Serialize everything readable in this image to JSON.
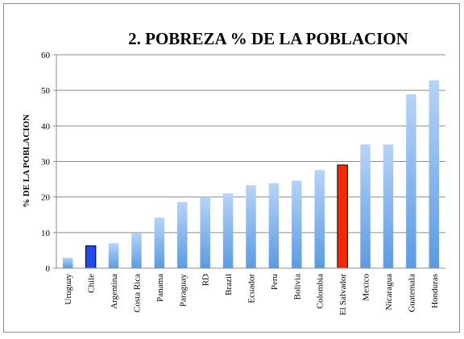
{
  "chart_data": {
    "type": "bar",
    "title": "2. POBREZA % DE LA POBLACION",
    "xlabel": "",
    "ylabel": "% DE LA POBLACION",
    "ylim": [
      0,
      60
    ],
    "yticks": [
      0,
      10,
      20,
      30,
      40,
      50,
      60
    ],
    "grid": true,
    "legend": "none",
    "categories": [
      "Uruguay",
      "Chile",
      "Argentina",
      "Costa Rica",
      "Panama",
      "Paraguay",
      "RD",
      "Brazil",
      "Ecuador",
      "Peru",
      "Bolivia",
      "Colombia",
      "El Salvador",
      "Mexico",
      "Nicaragua",
      "Guatemala",
      "Honduras"
    ],
    "values": [
      2.9,
      6.3,
      7.0,
      9.9,
      14.2,
      18.6,
      20.0,
      21.0,
      23.3,
      23.9,
      24.6,
      27.6,
      29.0,
      34.8,
      34.8,
      48.9,
      52.8
    ],
    "colors": {
      "default_top": "#b7d3f7",
      "default_bottom": "#5b9be2",
      "highlight_chile": "#1f49f2",
      "highlight_el_salvador": "#f22a06",
      "grid": "#8c8c8c",
      "axis": "#8c8c8c"
    },
    "highlights": {
      "Chile": "#1f49f2",
      "El Salvador": "#f22a06"
    }
  }
}
